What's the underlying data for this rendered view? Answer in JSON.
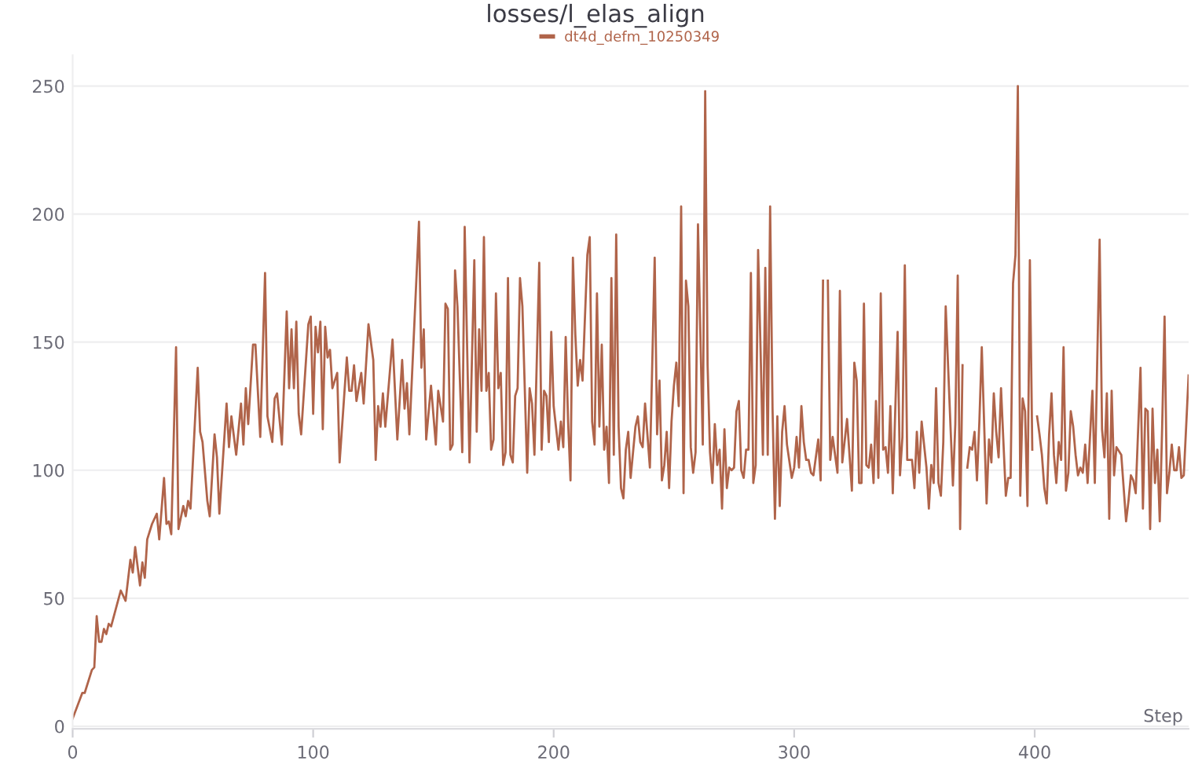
{
  "chart_data": {
    "type": "line",
    "title": "losses/l_elas_align",
    "xlabel": "Step",
    "xlim": [
      0,
      464
    ],
    "ylim": [
      -1,
      262
    ],
    "xticks": [
      0,
      100,
      200,
      300,
      400
    ],
    "yticks": [
      0,
      50,
      100,
      150,
      200,
      250
    ],
    "grid": "y",
    "legend": "top",
    "marker": "none",
    "line_style": "solid",
    "series": [
      {
        "name": "dt4d_defm_10250349",
        "color": "#b0644a",
        "x": [
          0,
          4,
          5,
          8,
          9,
          10,
          11,
          12,
          13,
          14,
          15,
          16,
          20,
          22,
          24,
          25,
          26,
          28,
          29,
          30,
          31,
          33,
          35,
          36,
          38,
          39,
          40,
          41,
          43,
          44,
          46,
          47,
          48,
          49,
          52,
          53,
          54,
          56,
          57,
          59,
          60,
          61,
          64,
          65,
          66,
          68,
          70,
          71,
          72,
          73,
          75,
          76,
          78,
          80,
          81,
          83,
          84,
          85,
          87,
          89,
          90,
          91,
          92,
          93,
          94,
          95,
          98,
          99,
          100,
          101,
          102,
          103,
          104,
          105,
          106,
          107,
          108,
          110,
          111,
          114,
          115,
          116,
          117,
          118,
          120,
          121,
          123,
          125,
          126,
          127,
          128,
          129,
          130,
          133,
          135,
          137,
          138,
          139,
          140,
          144,
          145,
          146,
          147,
          149,
          151,
          152,
          154,
          155,
          156,
          157,
          158,
          159,
          160,
          162,
          163,
          165,
          167,
          168,
          169,
          170,
          171,
          172,
          173,
          174,
          175,
          176,
          177,
          178,
          179,
          180,
          181,
          182,
          183,
          184,
          185,
          186,
          187,
          189,
          190,
          191,
          192,
          194,
          195,
          196,
          197,
          198,
          199,
          200,
          202,
          203,
          204,
          205,
          206,
          207,
          208,
          209,
          210,
          211,
          212,
          214,
          215,
          216,
          217,
          218,
          219,
          220,
          221,
          222,
          223,
          224,
          225,
          226,
          227,
          228,
          229,
          230,
          231,
          232,
          233,
          234,
          235,
          236,
          237,
          238,
          240,
          242,
          243,
          244,
          245,
          246,
          247,
          248,
          249,
          250,
          251,
          252,
          253,
          254,
          255,
          256,
          257,
          258,
          259,
          260,
          261,
          262,
          263,
          264,
          265,
          266,
          267,
          268,
          269,
          270,
          271,
          272,
          273,
          274,
          275,
          276,
          277,
          278,
          279,
          280,
          281,
          282,
          283,
          284,
          285,
          286,
          287,
          288,
          289,
          290,
          291,
          292,
          293,
          294,
          295,
          296,
          297,
          299,
          300,
          301,
          302,
          303,
          304,
          305,
          306,
          307,
          308,
          310,
          311,
          312,
          313,
          314,
          315,
          316,
          318,
          319,
          320,
          322,
          324,
          325,
          326,
          327,
          328,
          329,
          330,
          331,
          332,
          333,
          334,
          335,
          336,
          337,
          338,
          339,
          340,
          341,
          343,
          344,
          345,
          346,
          347,
          349,
          350,
          351,
          352,
          353,
          355,
          356,
          357,
          358,
          359,
          360,
          361,
          362,
          363,
          365,
          366,
          367,
          368,
          369,
          370,
          371,
          372,
          373,
          374,
          375,
          376,
          377,
          378,
          380,
          381,
          382,
          383,
          384,
          385,
          386,
          388,
          389,
          390,
          391,
          392,
          393,
          394,
          395,
          396,
          397,
          398,
          399,
          400,
          401,
          402,
          403,
          404,
          405,
          406,
          407,
          408,
          409,
          410,
          411,
          412,
          413,
          414,
          415,
          416,
          417,
          418,
          419,
          420,
          421,
          422,
          424,
          425,
          427,
          428,
          429,
          430,
          431,
          432,
          433,
          434,
          436,
          438,
          439,
          440,
          441,
          442,
          444,
          445,
          446,
          447,
          448,
          449,
          450,
          451,
          452,
          453,
          454,
          455,
          456,
          457,
          458,
          459,
          460,
          461,
          462,
          464
        ],
        "values": [
          3,
          13,
          13,
          22,
          23,
          43,
          33,
          33,
          38,
          36,
          40,
          39,
          53,
          49,
          65,
          60,
          70,
          55,
          64,
          58,
          73,
          79,
          83,
          73,
          97,
          79,
          80,
          75,
          148,
          77,
          86,
          82,
          88,
          85,
          140,
          115,
          111,
          88,
          82,
          114,
          105,
          83,
          126,
          109,
          121,
          106,
          126,
          110,
          132,
          118,
          149,
          149,
          113,
          177,
          121,
          111,
          128,
          130,
          110,
          162,
          132,
          155,
          132,
          158,
          122,
          114,
          157,
          160,
          122,
          156,
          146,
          158,
          116,
          156,
          144,
          147,
          132,
          138,
          103,
          144,
          131,
          131,
          141,
          127,
          138,
          126,
          157,
          143,
          104,
          125,
          117,
          130,
          117,
          151,
          112,
          143,
          124,
          134,
          114,
          197,
          140,
          155,
          112,
          133,
          110,
          131,
          119,
          165,
          163,
          108,
          110,
          178,
          164,
          107,
          195,
          103,
          182,
          115,
          155,
          131,
          191,
          131,
          138,
          108,
          112,
          169,
          132,
          138,
          102,
          107,
          175,
          106,
          103,
          129,
          132,
          175,
          164,
          99,
          132,
          126,
          106,
          181,
          108,
          131,
          129,
          111,
          154,
          125,
          108,
          119,
          109,
          152,
          119,
          96,
          183,
          153,
          133,
          143,
          135,
          184,
          191,
          119,
          110,
          169,
          117,
          149,
          108,
          117,
          95,
          175,
          106,
          192,
          117,
          93,
          89,
          108,
          115,
          97,
          107,
          117,
          121,
          111,
          109,
          126,
          101,
          183,
          114,
          135,
          96,
          102,
          115,
          93,
          119,
          133,
          142,
          125,
          203,
          91,
          174,
          164,
          109,
          99,
          107,
          196,
          153,
          110,
          248,
          141,
          107,
          95,
          118,
          102,
          108,
          85,
          116,
          93,
          101,
          100,
          101,
          123,
          127,
          100,
          97,
          108,
          108,
          177,
          95,
          102,
          186,
          148,
          106,
          179,
          106,
          203,
          124,
          81,
          121,
          86,
          115,
          125,
          110,
          97,
          101,
          113,
          101,
          125,
          111,
          104,
          104,
          99,
          98,
          112,
          96,
          174,
          null,
          174,
          104,
          113,
          99,
          170,
          103,
          120,
          92,
          142,
          135,
          95,
          95,
          165,
          102,
          101,
          110,
          95,
          127,
          97,
          169,
          108,
          109,
          99,
          125,
          91,
          154,
          98,
          113,
          180,
          104,
          104,
          93,
          115,
          99,
          119,
          101,
          85,
          102,
          95,
          132,
          95,
          90,
          111,
          164,
          117,
          94,
          118,
          176,
          77,
          141,
          null,
          101,
          109,
          108,
          115,
          96,
          119,
          148,
          87,
          112,
          103,
          130,
          115,
          105,
          132,
          90,
          97,
          97,
          173,
          184,
          250,
          90,
          128,
          123,
          86,
          182,
          108,
          null,
          121,
          114,
          106,
          93,
          87,
          114,
          130,
          106,
          95,
          111,
          104,
          148,
          92,
          99,
          123,
          117,
          106,
          98,
          101,
          99,
          110,
          95,
          131,
          95,
          190,
          116,
          105,
          130,
          81,
          131,
          98,
          109,
          106,
          80,
          88,
          98,
          96,
          91,
          140,
          85,
          124,
          123,
          77,
          124,
          95,
          108,
          80,
          117,
          160,
          91,
          99,
          110,
          100,
          100,
          109,
          97,
          98,
          137
        ]
      }
    ]
  }
}
